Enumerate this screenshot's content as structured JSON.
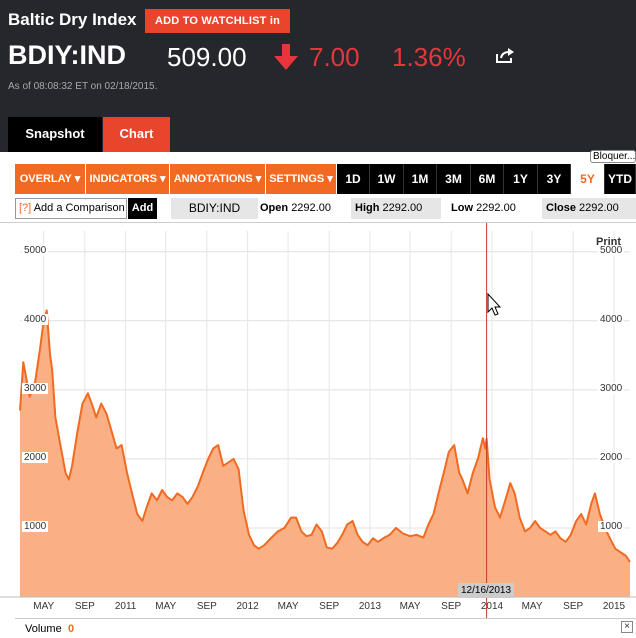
{
  "header": {
    "index_name": "Baltic Dry Index",
    "watchlist_label": "ADD TO WATCHLIST in",
    "ticker": "BDIY:IND",
    "price": "509.00",
    "change": "7.00",
    "change_pct": "1.36%",
    "as_of": "As of 08:08:32 ET on 02/18/2015.",
    "down_color": "#e8353c"
  },
  "tabs": {
    "snapshot": "Snapshot",
    "chart": "Chart"
  },
  "bloomberg_label": "Bloquer...",
  "toolbar": {
    "menus": [
      "OVERLAY ▾",
      "INDICATORS ▾",
      "ANNOTATIONS ▾",
      "SETTINGS ▾"
    ],
    "ranges": [
      "1D",
      "1W",
      "1M",
      "3M",
      "6M",
      "1Y",
      "3Y",
      "5Y",
      "YTD"
    ],
    "active_range": "5Y"
  },
  "infobar": {
    "compare_icon": "[?]",
    "compare_placeholder": "Add a Comparison",
    "add_label": "Add",
    "ticker_box": "BDIY:IND",
    "open_label": "Open",
    "open_value": "2292.00",
    "high_label": "High",
    "high_value": "2292.00",
    "low_label": "Low",
    "low_value": "2292.00",
    "close_label": "Close",
    "close_value": "2292.00"
  },
  "chart": {
    "print_label": "Print",
    "cursor_date": "12/16/2013",
    "accent": "#f26a21",
    "fill": "#f9b085"
  },
  "volume": {
    "label": "Volume",
    "value": "0"
  },
  "chart_data": {
    "type": "area",
    "title": "",
    "xlabel": "",
    "ylabel": "",
    "ylim": [
      0,
      5300
    ],
    "yticks": [
      "1000",
      "2000",
      "3000",
      "4000",
      "5000"
    ],
    "xticks": [
      "MAY",
      "SEP",
      "2011",
      "MAY",
      "SEP",
      "2012",
      "MAY",
      "SEP",
      "2013",
      "MAY",
      "SEP",
      "2014",
      "MAY",
      "SEP",
      "2015"
    ],
    "grid": true,
    "series": [
      {
        "x": [
          "2010-02-19",
          "2010-03-01",
          "2010-03-20",
          "2010-04-05",
          "2010-04-20",
          "2010-05-01",
          "2010-05-10",
          "2010-05-20",
          "2010-05-26",
          "2010-06-05",
          "2010-06-20",
          "2010-07-05",
          "2010-07-15",
          "2010-07-25",
          "2010-08-10",
          "2010-08-25",
          "2010-09-10",
          "2010-09-25",
          "2010-10-05",
          "2010-10-20",
          "2010-11-05",
          "2010-11-20",
          "2010-12-05",
          "2010-12-20",
          "2011-01-05",
          "2011-01-20",
          "2011-02-05",
          "2011-02-20",
          "2011-03-05",
          "2011-03-20",
          "2011-04-05",
          "2011-04-20",
          "2011-05-05",
          "2011-05-20",
          "2011-06-05",
          "2011-06-20",
          "2011-07-05",
          "2011-07-20",
          "2011-08-05",
          "2011-08-20",
          "2011-09-05",
          "2011-09-20",
          "2011-10-05",
          "2011-10-20",
          "2011-11-05",
          "2011-11-20",
          "2011-12-05",
          "2011-12-20",
          "2012-01-05",
          "2012-01-20",
          "2012-02-03",
          "2012-02-20",
          "2012-03-10",
          "2012-04-01",
          "2012-04-20",
          "2012-05-10",
          "2012-05-25",
          "2012-06-10",
          "2012-06-25",
          "2012-07-10",
          "2012-07-25",
          "2012-08-10",
          "2012-08-25",
          "2012-09-10",
          "2012-09-25",
          "2012-10-10",
          "2012-10-25",
          "2012-11-10",
          "2012-11-25",
          "2012-12-10",
          "2012-12-25",
          "2013-01-10",
          "2013-01-25",
          "2013-02-10",
          "2013-03-01",
          "2013-03-20",
          "2013-04-10",
          "2013-05-01",
          "2013-05-20",
          "2013-06-10",
          "2013-06-25",
          "2013-07-10",
          "2013-07-25",
          "2013-08-10",
          "2013-08-25",
          "2013-09-10",
          "2013-09-25",
          "2013-10-05",
          "2013-10-20",
          "2013-11-05",
          "2013-11-20",
          "2013-12-05",
          "2013-12-12",
          "2013-12-16",
          "2013-12-25",
          "2014-01-10",
          "2014-01-25",
          "2014-02-10",
          "2014-02-25",
          "2014-03-10",
          "2014-03-25",
          "2014-04-10",
          "2014-04-25",
          "2014-05-10",
          "2014-05-25",
          "2014-06-10",
          "2014-06-25",
          "2014-07-10",
          "2014-07-25",
          "2014-08-10",
          "2014-08-25",
          "2014-09-10",
          "2014-09-25",
          "2014-10-10",
          "2014-10-25",
          "2014-11-05",
          "2014-11-20",
          "2014-12-05",
          "2014-12-20",
          "2015-01-05",
          "2015-01-20",
          "2015-02-05",
          "2015-02-18"
        ],
        "y": [
          2700,
          3400,
          2900,
          3100,
          3600,
          4000,
          4150,
          3500,
          3300,
          2600,
          2200,
          1800,
          1700,
          1900,
          2400,
          2800,
          2950,
          2750,
          2600,
          2800,
          2650,
          2400,
          2150,
          2200,
          1800,
          1500,
          1200,
          1100,
          1300,
          1500,
          1400,
          1550,
          1450,
          1400,
          1500,
          1450,
          1350,
          1450,
          1600,
          1800,
          2000,
          2150,
          2200,
          1900,
          1950,
          2000,
          1850,
          1250,
          900,
          750,
          700,
          750,
          850,
          950,
          1000,
          1150,
          1150,
          950,
          880,
          900,
          1050,
          950,
          720,
          700,
          780,
          900,
          1050,
          1100,
          900,
          800,
          750,
          850,
          800,
          850,
          900,
          1000,
          920,
          880,
          900,
          860,
          1050,
          1200,
          1500,
          1800,
          2100,
          2200,
          1800,
          1700,
          1500,
          1800,
          2000,
          2300,
          2150,
          2292,
          1700,
          1300,
          1150,
          1400,
          1650,
          1500,
          1150,
          950,
          1000,
          1100,
          1000,
          950,
          900,
          950,
          850,
          800,
          900,
          1100,
          1200,
          1050,
          1350,
          1500,
          1200,
          1000,
          850,
          700,
          650,
          600,
          509
        ]
      }
    ]
  }
}
